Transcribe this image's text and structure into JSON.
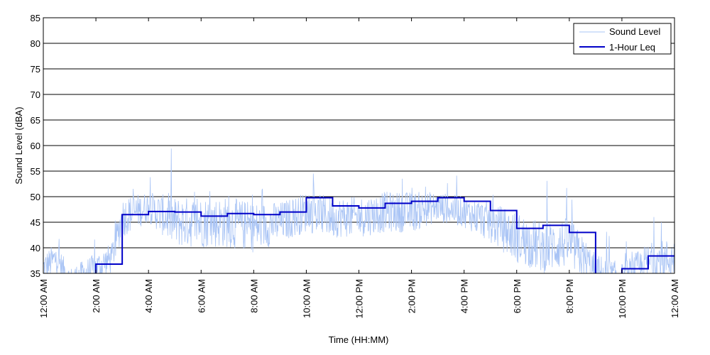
{
  "chart_data": {
    "type": "line",
    "xlabel": "Time (HH:MM)",
    "ylabel": "Sound Level (dBA)",
    "ylim": [
      35,
      85
    ],
    "xlim_hours": [
      0,
      24
    ],
    "grid": "horizontal",
    "legend_position": "top-right",
    "y_ticks": [
      35,
      40,
      45,
      50,
      55,
      60,
      65,
      70,
      75,
      80,
      85
    ],
    "x_ticks": [
      {
        "hour": 0,
        "label": "12:00 AM"
      },
      {
        "hour": 2,
        "label": "2:00 AM"
      },
      {
        "hour": 4,
        "label": "4:00 AM"
      },
      {
        "hour": 6,
        "label": "6:00 AM"
      },
      {
        "hour": 8,
        "label": "8:00 AM"
      },
      {
        "hour": 10,
        "label": "10:00 AM"
      },
      {
        "hour": 12,
        "label": "12:00 PM"
      },
      {
        "hour": 14,
        "label": "2:00 PM"
      },
      {
        "hour": 16,
        "label": "4:00 PM"
      },
      {
        "hour": 18,
        "label": "6:00 PM"
      },
      {
        "hour": 20,
        "label": "8:00 PM"
      },
      {
        "hour": 22,
        "label": "10:00 PM"
      },
      {
        "hour": 24,
        "label": "12:00 AM"
      }
    ],
    "series": [
      {
        "name": "Sound Level",
        "color": "#a9c4f5",
        "style": "thin-line",
        "anchors": [
          {
            "hour": 0.0,
            "level": 36,
            "spread": 3
          },
          {
            "hour": 0.5,
            "level": 38,
            "spread": 3
          },
          {
            "hour": 1.0,
            "level": 34,
            "spread": 2
          },
          {
            "hour": 2.0,
            "level": 36,
            "spread": 3
          },
          {
            "hour": 2.6,
            "level": 38,
            "spread": 3
          },
          {
            "hour": 3.0,
            "level": 46,
            "spread": 4
          },
          {
            "hour": 4.0,
            "level": 48,
            "spread": 3
          },
          {
            "hour": 5.0,
            "level": 45,
            "spread": 5
          },
          {
            "hour": 6.0,
            "level": 45,
            "spread": 5
          },
          {
            "hour": 7.0,
            "level": 45,
            "spread": 5
          },
          {
            "hour": 8.0,
            "level": 44,
            "spread": 5
          },
          {
            "hour": 9.0,
            "level": 45,
            "spread": 4
          },
          {
            "hour": 10.0,
            "level": 47,
            "spread": 4
          },
          {
            "hour": 11.0,
            "level": 46,
            "spread": 4
          },
          {
            "hour": 12.0,
            "level": 46,
            "spread": 4
          },
          {
            "hour": 13.0,
            "level": 47,
            "spread": 4
          },
          {
            "hour": 14.0,
            "level": 47,
            "spread": 4
          },
          {
            "hour": 15.0,
            "level": 48,
            "spread": 3
          },
          {
            "hour": 16.0,
            "level": 47,
            "spread": 3
          },
          {
            "hour": 17.0,
            "level": 45,
            "spread": 4
          },
          {
            "hour": 18.0,
            "level": 42,
            "spread": 5
          },
          {
            "hour": 19.0,
            "level": 40,
            "spread": 5
          },
          {
            "hour": 20.0,
            "level": 41,
            "spread": 5
          },
          {
            "hour": 21.0,
            "level": 35,
            "spread": 4
          },
          {
            "hour": 22.0,
            "level": 34,
            "spread": 3
          },
          {
            "hour": 23.0,
            "level": 37,
            "spread": 4
          },
          {
            "hour": 24.0,
            "level": 38,
            "spread": 4
          }
        ]
      },
      {
        "name": "1-Hour Leq",
        "color": "#0000c8",
        "style": "step",
        "hours": [
          0,
          1,
          2,
          3,
          4,
          5,
          6,
          7,
          8,
          9,
          10,
          11,
          12,
          13,
          14,
          15,
          16,
          17,
          18,
          19,
          20,
          21,
          22,
          23
        ],
        "values": [
          33.5,
          34,
          36.8,
          46.5,
          47.1,
          47.0,
          46.2,
          46.7,
          46.5,
          47.0,
          49.8,
          48.2,
          47.8,
          48.7,
          49.1,
          49.8,
          49.1,
          47.3,
          43.8,
          44.4,
          43.0,
          33.5,
          35.9,
          38.4
        ]
      }
    ]
  }
}
